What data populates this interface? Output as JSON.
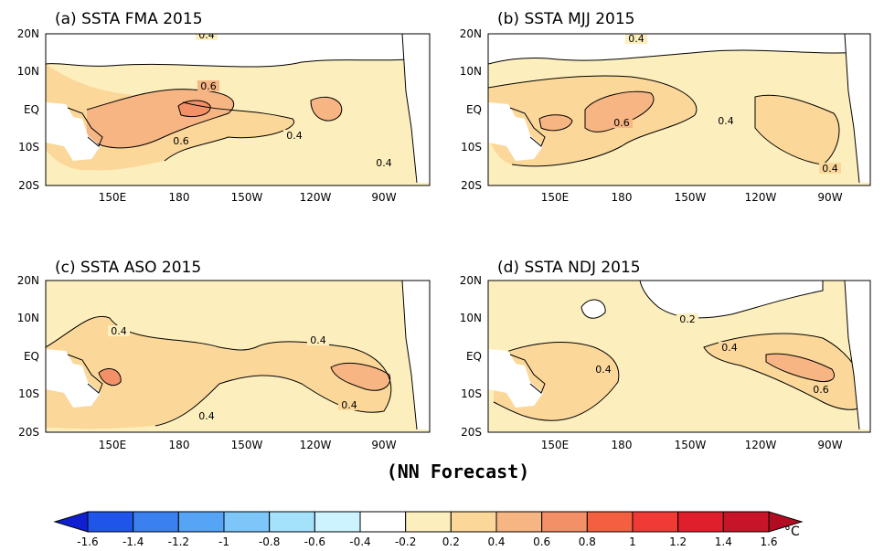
{
  "panels": [
    {
      "title": "(a) SSTA  FMA 2015",
      "labels": [
        "0.4",
        "0.6",
        "0.6",
        "0.4",
        "0.4"
      ]
    },
    {
      "title": "(b) SSTA  MJJ 2015",
      "labels": [
        "0.4",
        "0.6",
        "0.4",
        "0.4"
      ]
    },
    {
      "title": "(c) SSTA  ASO 2015",
      "labels": [
        "0.4",
        "0.4",
        "0.4",
        "0.4"
      ]
    },
    {
      "title": "(d) SSTA  NDJ 2015",
      "labels": [
        "0.2",
        "0.4",
        "0.4",
        "0.6"
      ]
    }
  ],
  "lat_ticks": [
    "20N",
    "10N",
    "EQ",
    "10S",
    "20S"
  ],
  "lon_ticks": [
    "150E",
    "180",
    "150W",
    "120W",
    "90W"
  ],
  "footer": "(NN Forecast)",
  "colorbar": {
    "ticks": [
      "-1.6",
      "-1.4",
      "-1.2",
      "-1",
      "-0.8",
      "-0.6",
      "-0.4",
      "-0.2",
      "0.2",
      "0.4",
      "0.6",
      "0.8",
      "1",
      "1.2",
      "1.4",
      "1.6"
    ],
    "unit": "°C",
    "colors": [
      "#1020d0",
      "#1f55e8",
      "#3a80f0",
      "#56a4f5",
      "#7cc6fa",
      "#a4e2fc",
      "#cdf3fe",
      "#ffffff",
      "#fdefbd",
      "#fbd89a",
      "#f6b583",
      "#f49068",
      "#f3603f",
      "#ef3a36",
      "#e01f2c",
      "#c81428",
      "#b00d22"
    ]
  }
}
